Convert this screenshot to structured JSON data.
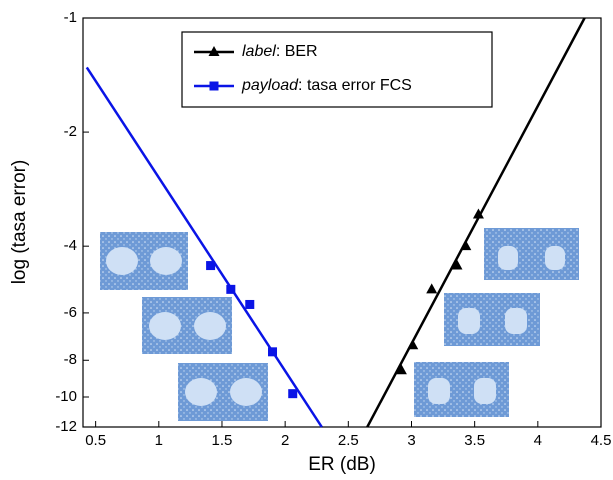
{
  "chart_data": {
    "type": "scatter-fit",
    "x_label": "ER (dB)",
    "y_label": "log (tasa error)",
    "xlim": [
      0.4,
      4.5
    ],
    "xticks": [
      0.5,
      1,
      1.5,
      2,
      2.5,
      3,
      3.5,
      4,
      4.5
    ],
    "ylim": [
      -12,
      -1
    ],
    "yticks": [
      -1,
      -2,
      -4,
      -6,
      -8,
      -10,
      -12
    ],
    "yscale": "log-negative",
    "legend": "top",
    "series": [
      {
        "name": "label: BER",
        "color": "#000000",
        "marker": "triangle",
        "x": [
          2.92,
          3.01,
          3.16,
          3.36,
          3.43,
          3.53
        ],
        "values": [
          -8.5,
          -7.3,
          -5.2,
          -4.5,
          -4.0,
          -3.3
        ],
        "fit_x": [
          2.65,
          4.37
        ],
        "fit_values": [
          -12,
          -1
        ]
      },
      {
        "name": "payload: tasa error FCS",
        "color": "#0a14e6",
        "marker": "square",
        "x": [
          1.41,
          1.57,
          1.72,
          1.9,
          2.06
        ],
        "values": [
          -4.5,
          -5.2,
          -5.7,
          -7.6,
          -9.8
        ],
        "fit_x": [
          0.43,
          2.29
        ],
        "fit_values": [
          -1.35,
          -12
        ]
      }
    ]
  }
}
